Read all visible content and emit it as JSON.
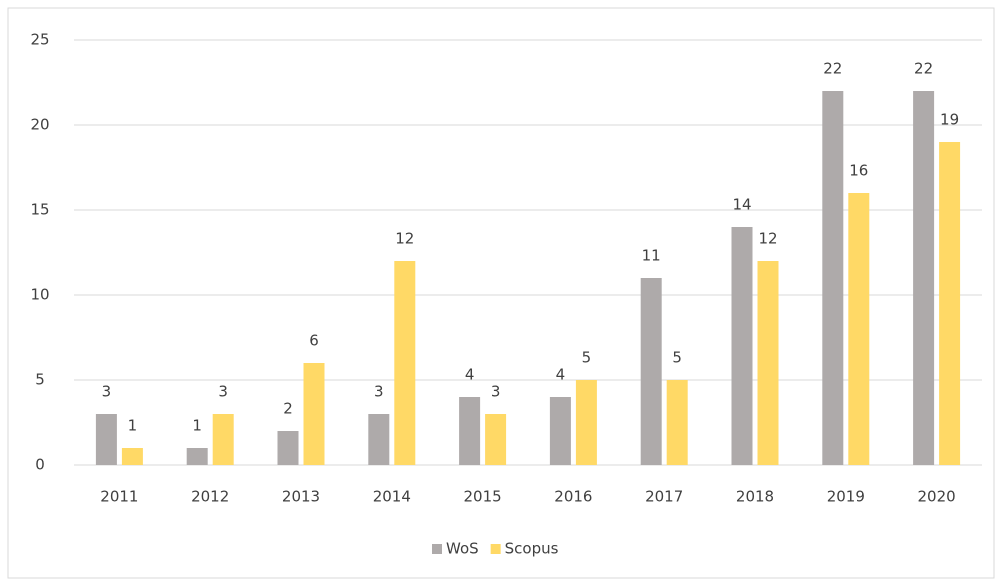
{
  "chart_data": {
    "type": "bar",
    "categories": [
      "2011",
      "2012",
      "2013",
      "2014",
      "2015",
      "2016",
      "2017",
      "2018",
      "2019",
      "2020"
    ],
    "series": [
      {
        "name": "WoS",
        "color": "#aeaaaa",
        "values": [
          3,
          1,
          2,
          3,
          4,
          4,
          11,
          14,
          22,
          22
        ]
      },
      {
        "name": "Scopus",
        "color": "#ffd966",
        "values": [
          1,
          3,
          6,
          12,
          3,
          5,
          5,
          12,
          16,
          19
        ]
      }
    ],
    "ylim": [
      0,
      25
    ],
    "yticks": [
      0,
      5,
      10,
      15,
      20,
      25
    ],
    "grid": true,
    "legend": "bottom"
  }
}
